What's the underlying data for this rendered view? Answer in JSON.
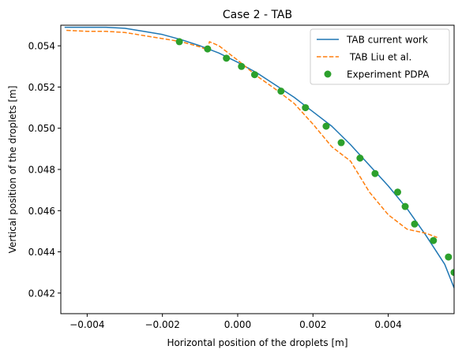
{
  "chart_data": {
    "type": "line",
    "title": "Case 2 - TAB",
    "xlabel": "Horizontal position of the droplets [m]",
    "ylabel": "Vertical position of the droplets [m]",
    "xlim": [
      -0.0047,
      0.00575
    ],
    "ylim": [
      0.041,
      0.055
    ],
    "xticks": [
      -0.004,
      -0.002,
      0.0,
      0.002,
      0.004
    ],
    "xtick_labels": [
      "−0.004",
      "−0.002",
      "0.000",
      "0.002",
      "0.004"
    ],
    "yticks": [
      0.042,
      0.044,
      0.046,
      0.048,
      0.05,
      0.052,
      0.054
    ],
    "ytick_labels": [
      "0.042",
      "0.044",
      "0.046",
      "0.048",
      "0.050",
      "0.052",
      "0.054"
    ],
    "grid": false,
    "legend_position": "top-right",
    "series": [
      {
        "name": "TAB current work",
        "kind": "line",
        "color": "#1f77b4",
        "dash": "solid",
        "x": [
          -0.0046,
          -0.004,
          -0.0035,
          -0.003,
          -0.0025,
          -0.002,
          -0.0015,
          -0.001,
          -0.0005,
          0.0,
          0.0005,
          0.001,
          0.0015,
          0.002,
          0.0025,
          0.003,
          0.0035,
          0.004,
          0.0045,
          0.005,
          0.0055,
          0.00575
        ],
        "y": [
          0.0549,
          0.0549,
          0.0549,
          0.05485,
          0.0547,
          0.05455,
          0.0543,
          0.054,
          0.05365,
          0.0532,
          0.0527,
          0.0521,
          0.0515,
          0.0508,
          0.0501,
          0.0492,
          0.0482,
          0.0472,
          0.0461,
          0.0448,
          0.0434,
          0.04225
        ]
      },
      {
        "name": " TAB Liu et al.",
        "kind": "line",
        "color": "#ff7f0e",
        "dash": "dashed",
        "x": [
          -0.00455,
          -0.004,
          -0.0035,
          -0.003,
          -0.0025,
          -0.002,
          -0.0015,
          -0.001,
          -0.0008,
          -0.00075,
          -0.0005,
          0.0,
          0.0005,
          0.001,
          0.0015,
          0.002,
          0.0025,
          0.003,
          0.0035,
          0.004,
          0.0045,
          0.005,
          0.0053
        ],
        "y": [
          0.05475,
          0.0547,
          0.0547,
          0.05465,
          0.0545,
          0.05435,
          0.0542,
          0.05395,
          0.0538,
          0.0542,
          0.054,
          0.0533,
          0.05255,
          0.0519,
          0.0512,
          0.0502,
          0.0491,
          0.0484,
          0.0469,
          0.0458,
          0.0451,
          0.0449,
          0.0447
        ]
      },
      {
        "name": "Experiment PDPA",
        "kind": "scatter",
        "color": "#2ca02c",
        "x": [
          -0.00155,
          -0.0008,
          -0.0003,
          0.0001,
          0.00045,
          0.00115,
          0.0018,
          0.00235,
          0.00275,
          0.00325,
          0.00365,
          0.00425,
          0.00445,
          0.0047,
          0.0052,
          0.0056,
          0.00575
        ],
        "y": [
          0.0542,
          0.05385,
          0.0534,
          0.053,
          0.0526,
          0.0518,
          0.051,
          0.0501,
          0.0493,
          0.04855,
          0.0478,
          0.0469,
          0.0462,
          0.04535,
          0.04455,
          0.04375,
          0.043
        ]
      }
    ]
  }
}
